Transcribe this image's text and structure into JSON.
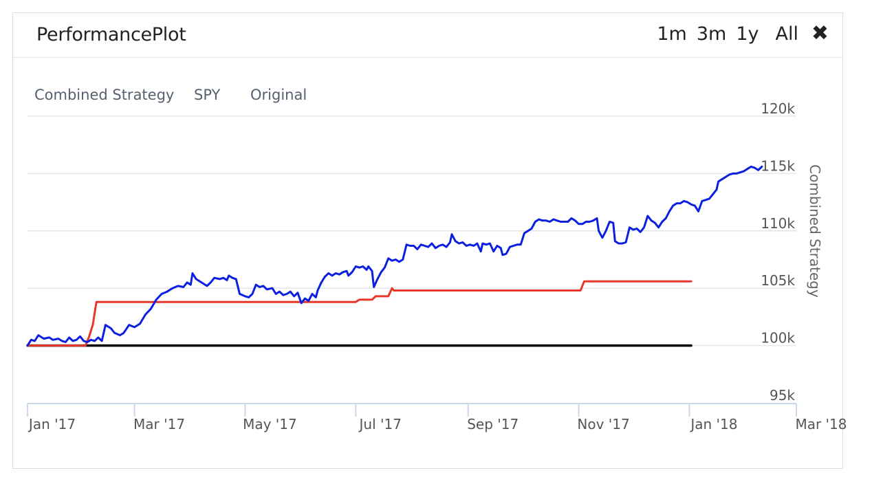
{
  "panel": {
    "title": "PerformancePlot",
    "ranges": [
      "1m",
      "3m",
      "1y",
      "All"
    ],
    "close_icon": "close-icon"
  },
  "chart_data": {
    "type": "line",
    "title": "",
    "xlabel": "",
    "ylabel": "Combined Strategy",
    "ylim": [
      95000,
      120000
    ],
    "y_ticks": [
      {
        "value": 95000,
        "label": "95k"
      },
      {
        "value": 100000,
        "label": "100k"
      },
      {
        "value": 105000,
        "label": "105k"
      },
      {
        "value": 110000,
        "label": "110k"
      },
      {
        "value": 115000,
        "label": "115k"
      },
      {
        "value": 120000,
        "label": "120k"
      }
    ],
    "x_ticks": [
      {
        "day": 0,
        "label": "Jan '17"
      },
      {
        "day": 59,
        "label": "Mar '17"
      },
      {
        "day": 120,
        "label": "May '17"
      },
      {
        "day": 181,
        "label": "Jul '17"
      },
      {
        "day": 243,
        "label": "Sep '17"
      },
      {
        "day": 304,
        "label": "Nov '17"
      },
      {
        "day": 365,
        "label": "Jan '18"
      },
      {
        "day": 424,
        "label": "Mar '18"
      }
    ],
    "xlim": [
      0,
      424
    ],
    "legend": [
      "Combined Strategy",
      "SPY",
      "Original"
    ],
    "series": [
      {
        "name": "Combined Strategy",
        "color": "#0b1fe0",
        "points": [
          [
            0,
            100000
          ],
          [
            2,
            100500
          ],
          [
            4,
            100400
          ],
          [
            6,
            100900
          ],
          [
            9,
            100600
          ],
          [
            12,
            100700
          ],
          [
            14,
            100500
          ],
          [
            17,
            100600
          ],
          [
            19,
            100400
          ],
          [
            21,
            100300
          ],
          [
            23,
            100700
          ],
          [
            25,
            100400
          ],
          [
            27,
            100500
          ],
          [
            29,
            100800
          ],
          [
            31,
            100400
          ],
          [
            33,
            100300
          ],
          [
            35,
            100500
          ],
          [
            37,
            100400
          ],
          [
            39,
            100700
          ],
          [
            41,
            100400
          ],
          [
            43,
            101800
          ],
          [
            46,
            101500
          ],
          [
            48,
            101100
          ],
          [
            51,
            100900
          ],
          [
            53,
            101100
          ],
          [
            56,
            101800
          ],
          [
            59,
            101600
          ],
          [
            62,
            101900
          ],
          [
            65,
            102700
          ],
          [
            68,
            103200
          ],
          [
            71,
            104000
          ],
          [
            74,
            104500
          ],
          [
            77,
            104700
          ],
          [
            80,
            105000
          ],
          [
            83,
            105200
          ],
          [
            86,
            105100
          ],
          [
            88,
            105500
          ],
          [
            90,
            105300
          ],
          [
            91,
            106300
          ],
          [
            93,
            105800
          ],
          [
            96,
            105500
          ],
          [
            99,
            105200
          ],
          [
            101,
            105500
          ],
          [
            103,
            105900
          ],
          [
            106,
            105800
          ],
          [
            108,
            105900
          ],
          [
            110,
            105700
          ],
          [
            111,
            106100
          ],
          [
            113,
            105900
          ],
          [
            115,
            105800
          ],
          [
            117,
            104500
          ],
          [
            120,
            104300
          ],
          [
            122,
            104200
          ],
          [
            124,
            104500
          ],
          [
            126,
            105300
          ],
          [
            128,
            105100
          ],
          [
            130,
            105200
          ],
          [
            132,
            104900
          ],
          [
            135,
            105000
          ],
          [
            137,
            104500
          ],
          [
            139,
            104700
          ],
          [
            141,
            104400
          ],
          [
            143,
            104500
          ],
          [
            145,
            104700
          ],
          [
            147,
            104300
          ],
          [
            149,
            104600
          ],
          [
            151,
            103700
          ],
          [
            153,
            104100
          ],
          [
            155,
            103900
          ],
          [
            157,
            104500
          ],
          [
            159,
            104200
          ],
          [
            160,
            104800
          ],
          [
            162,
            105500
          ],
          [
            164,
            106000
          ],
          [
            166,
            106300
          ],
          [
            168,
            106100
          ],
          [
            170,
            106300
          ],
          [
            172,
            106200
          ],
          [
            174,
            106400
          ],
          [
            176,
            106500
          ],
          [
            177,
            106100
          ],
          [
            179,
            106400
          ],
          [
            181,
            106900
          ],
          [
            183,
            106800
          ],
          [
            185,
            106900
          ],
          [
            187,
            106600
          ],
          [
            188,
            106900
          ],
          [
            190,
            106500
          ],
          [
            191,
            105100
          ],
          [
            193,
            105800
          ],
          [
            195,
            106400
          ],
          [
            197,
            106800
          ],
          [
            199,
            107600
          ],
          [
            201,
            107400
          ],
          [
            203,
            107500
          ],
          [
            205,
            107300
          ],
          [
            207,
            107500
          ],
          [
            209,
            108800
          ],
          [
            211,
            108700
          ],
          [
            213,
            108700
          ],
          [
            215,
            108400
          ],
          [
            217,
            108800
          ],
          [
            219,
            108700
          ],
          [
            221,
            108600
          ],
          [
            223,
            108900
          ],
          [
            225,
            108500
          ],
          [
            227,
            108700
          ],
          [
            229,
            108800
          ],
          [
            231,
            108600
          ],
          [
            233,
            109000
          ],
          [
            234,
            109700
          ],
          [
            236,
            109100
          ],
          [
            238,
            108900
          ],
          [
            240,
            109000
          ],
          [
            242,
            108700
          ],
          [
            244,
            108800
          ],
          [
            246,
            108700
          ],
          [
            248,
            108900
          ],
          [
            250,
            108200
          ],
          [
            251,
            108900
          ],
          [
            253,
            108800
          ],
          [
            255,
            108900
          ],
          [
            257,
            108200
          ],
          [
            259,
            108700
          ],
          [
            261,
            108500
          ],
          [
            262,
            107900
          ],
          [
            264,
            108000
          ],
          [
            266,
            108600
          ],
          [
            268,
            108700
          ],
          [
            270,
            108800
          ],
          [
            272,
            108800
          ],
          [
            274,
            109800
          ],
          [
            276,
            110000
          ],
          [
            278,
            110200
          ],
          [
            280,
            110800
          ],
          [
            282,
            111000
          ],
          [
            284,
            110900
          ],
          [
            286,
            110900
          ],
          [
            288,
            110800
          ],
          [
            290,
            111000
          ],
          [
            292,
            110900
          ],
          [
            294,
            110800
          ],
          [
            296,
            110800
          ],
          [
            298,
            110800
          ],
          [
            300,
            111100
          ],
          [
            302,
            110900
          ],
          [
            304,
            110600
          ],
          [
            306,
            110600
          ],
          [
            308,
            110800
          ],
          [
            310,
            110800
          ],
          [
            312,
            110900
          ],
          [
            314,
            111100
          ],
          [
            315,
            110000
          ],
          [
            317,
            109400
          ],
          [
            319,
            110000
          ],
          [
            321,
            110800
          ],
          [
            323,
            110700
          ],
          [
            324,
            109100
          ],
          [
            326,
            108900
          ],
          [
            328,
            108900
          ],
          [
            330,
            109000
          ],
          [
            332,
            110300
          ],
          [
            334,
            110100
          ],
          [
            336,
            110200
          ],
          [
            338,
            109900
          ],
          [
            340,
            110300
          ],
          [
            342,
            111300
          ],
          [
            344,
            110900
          ],
          [
            346,
            110700
          ],
          [
            348,
            110300
          ],
          [
            350,
            110800
          ],
          [
            352,
            111100
          ],
          [
            354,
            111700
          ],
          [
            356,
            112200
          ],
          [
            358,
            112400
          ],
          [
            360,
            112400
          ],
          [
            362,
            112600
          ],
          [
            364,
            112500
          ],
          [
            366,
            112300
          ],
          [
            368,
            112200
          ],
          [
            370,
            111700
          ],
          [
            372,
            112600
          ],
          [
            374,
            112700
          ],
          [
            376,
            112800
          ],
          [
            378,
            113200
          ],
          [
            380,
            113600
          ],
          [
            381,
            114300
          ],
          [
            383,
            114500
          ],
          [
            385,
            114700
          ],
          [
            387,
            114900
          ],
          [
            389,
            115000
          ],
          [
            391,
            115000
          ],
          [
            393,
            115100
          ],
          [
            395,
            115200
          ],
          [
            397,
            115400
          ],
          [
            399,
            115600
          ],
          [
            401,
            115500
          ],
          [
            403,
            115300
          ],
          [
            405,
            115600
          ]
        ]
      },
      {
        "name": "SPY",
        "color": "#e8372a",
        "points": [
          [
            0,
            100000
          ],
          [
            32,
            100000
          ],
          [
            34,
            100800
          ],
          [
            36,
            101800
          ],
          [
            38,
            103800
          ],
          [
            80,
            103800
          ],
          [
            181,
            103800
          ],
          [
            183,
            104000
          ],
          [
            190,
            104000
          ],
          [
            192,
            104300
          ],
          [
            199,
            104300
          ],
          [
            201,
            105000
          ],
          [
            202,
            104800
          ],
          [
            300,
            104800
          ],
          [
            305,
            104800
          ],
          [
            307,
            105600
          ],
          [
            366,
            105600
          ]
        ]
      },
      {
        "name": "Original",
        "color": "#000000",
        "points": [
          [
            0,
            100000
          ],
          [
            366,
            100000
          ]
        ]
      }
    ]
  }
}
